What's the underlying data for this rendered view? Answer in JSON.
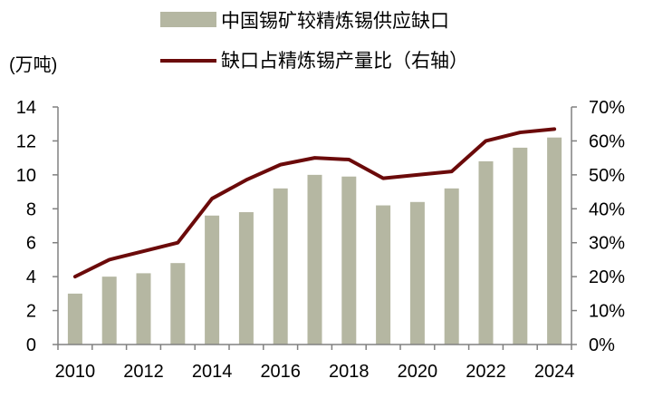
{
  "chart_data": {
    "type": "bar+line",
    "unit_label": "(万吨)",
    "categories": [
      "2010",
      "2011",
      "2012",
      "2013",
      "2014",
      "2015",
      "2016",
      "2017",
      "2018",
      "2019",
      "2020",
      "2021",
      "2022",
      "2023",
      "2024"
    ],
    "x_tick_labels": [
      "2010",
      "2012",
      "2014",
      "2016",
      "2018",
      "2020",
      "2022",
      "2024"
    ],
    "series": [
      {
        "name": "中国锡矿较精炼锡供应缺口",
        "type": "bar",
        "axis": "left",
        "color": "#b5b7a2",
        "values": [
          3.0,
          4.0,
          4.2,
          4.8,
          7.6,
          7.8,
          9.2,
          10.0,
          9.9,
          8.2,
          8.4,
          9.2,
          10.8,
          11.6,
          12.2
        ]
      },
      {
        "name": "缺口占精炼锡产量比（右轴）",
        "type": "line",
        "axis": "right",
        "color": "#6b0a0a",
        "values": [
          0.2,
          0.25,
          0.275,
          0.3,
          0.43,
          0.485,
          0.53,
          0.55,
          0.545,
          0.49,
          0.5,
          0.51,
          0.6,
          0.625,
          0.635
        ]
      }
    ],
    "y_left": {
      "min": 0,
      "max": 14,
      "ticks": [
        "0",
        "2",
        "4",
        "6",
        "8",
        "10",
        "12",
        "14"
      ]
    },
    "y_right": {
      "min": 0,
      "max": 0.7,
      "ticks": [
        "0%",
        "10%",
        "20%",
        "30%",
        "40%",
        "50%",
        "60%",
        "70%"
      ]
    },
    "grid": false,
    "legend_position": "top"
  }
}
